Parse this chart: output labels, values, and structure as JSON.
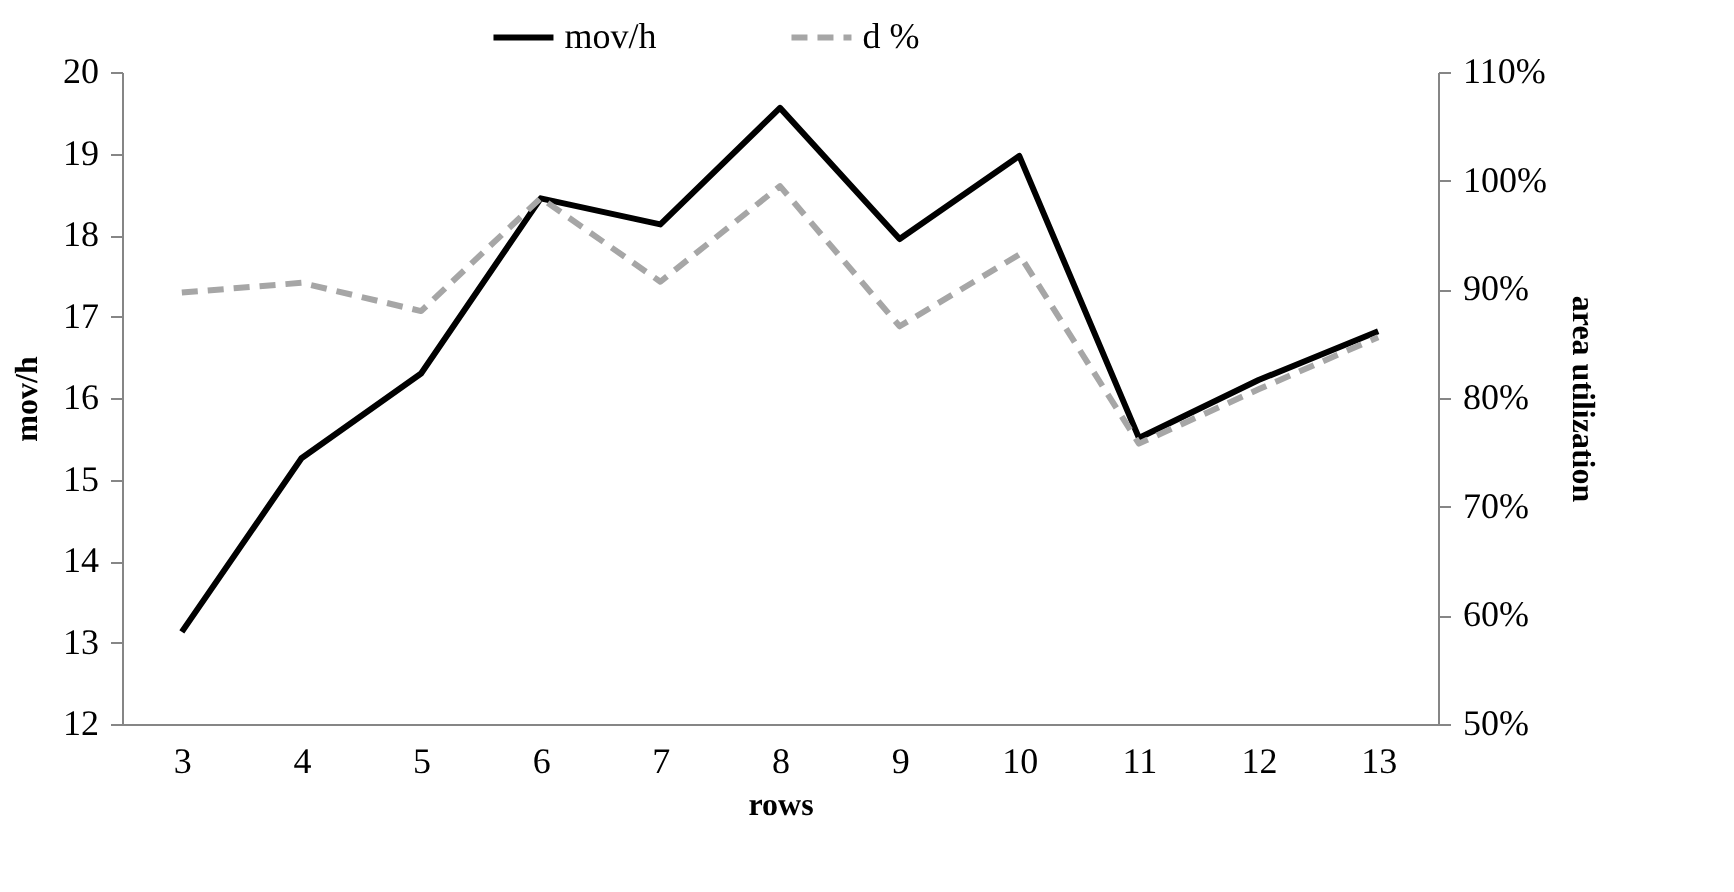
{
  "chart_data": {
    "type": "line",
    "xlabel": "rows",
    "ylabel": "mov/h",
    "y2label": "area utilization",
    "categories": [
      "3",
      "4",
      "5",
      "6",
      "7",
      "8",
      "9",
      "10",
      "11",
      "12",
      "13"
    ],
    "series": [
      {
        "name": "mov/h",
        "color": "#000000",
        "line_style": "solid",
        "values": [
          13.13,
          15.26,
          16.3,
          18.45,
          18.13,
          19.56,
          17.95,
          18.97,
          15.51,
          16.22,
          16.82
        ]
      },
      {
        "name": "d %",
        "color": "#a6a6a6",
        "line_style": "dashed",
        "axis": "y2",
        "values": [
          89.7,
          90.6,
          88.0,
          98.4,
          90.7,
          99.5,
          86.6,
          93.2,
          75.8,
          80.8,
          85.6
        ]
      }
    ],
    "ylim": [
      12,
      20
    ],
    "yticks": [
      12,
      13,
      14,
      15,
      16,
      17,
      18,
      19,
      20
    ],
    "y2lim": [
      50,
      110
    ],
    "y2ticks": [
      {
        "value": 50,
        "label": "50%"
      },
      {
        "value": 60,
        "label": "60%"
      },
      {
        "value": 70,
        "label": "70%"
      },
      {
        "value": 80,
        "label": "80%"
      },
      {
        "value": 90,
        "label": "90%"
      },
      {
        "value": 100,
        "label": "100%"
      },
      {
        "value": 110,
        "label": "110%"
      }
    ],
    "grid": false,
    "legend": "top",
    "marker": "none"
  }
}
